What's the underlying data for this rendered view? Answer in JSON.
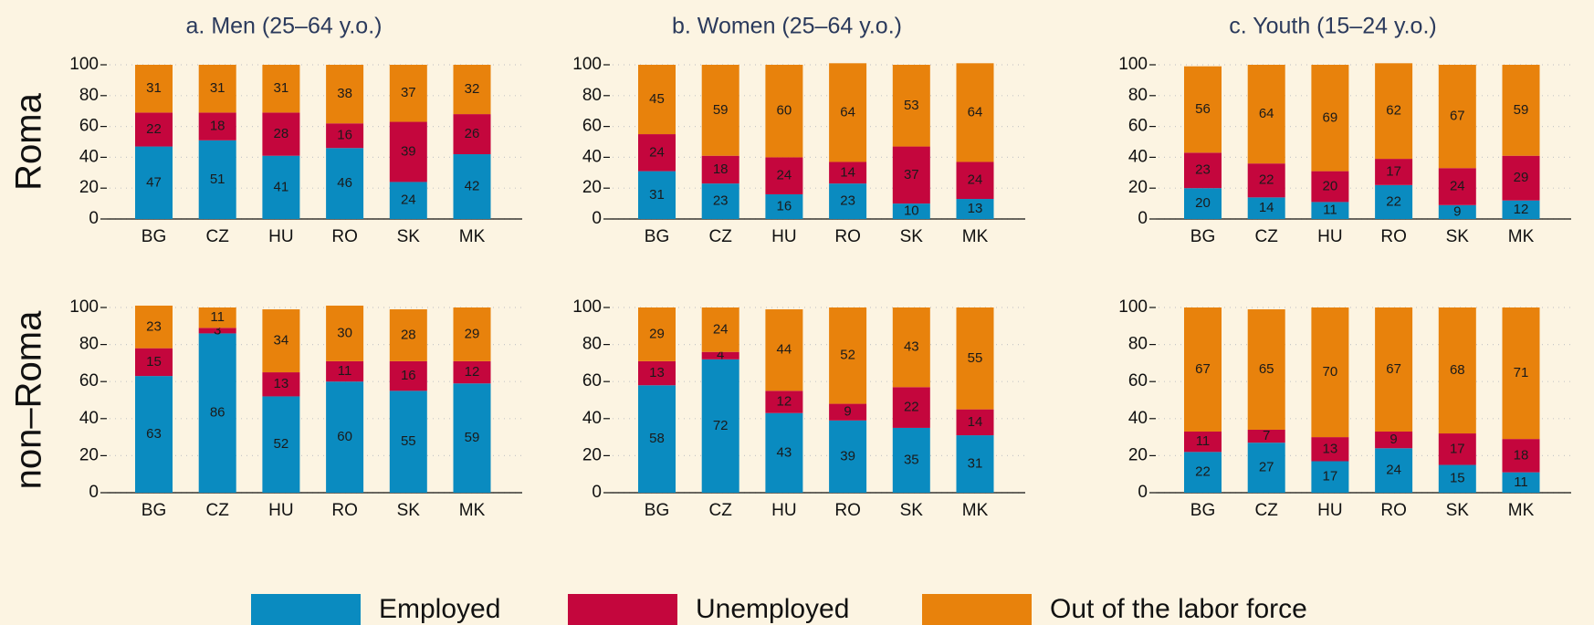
{
  "chart_data": [
    {
      "type": "bar",
      "stacked": true,
      "title": "a. Men (25–64 y.o.)",
      "row_label": "Roma",
      "categories": [
        "BG",
        "CZ",
        "HU",
        "RO",
        "SK",
        "MK"
      ],
      "series": [
        {
          "name": "Employed",
          "color": "#0a8bc0",
          "values": [
            47,
            51,
            41,
            46,
            24,
            42
          ]
        },
        {
          "name": "Unemployed",
          "color": "#c4063d",
          "values": [
            22,
            18,
            28,
            16,
            39,
            26
          ]
        },
        {
          "name": "Out of the labor force",
          "color": "#e8820c",
          "values": [
            31,
            31,
            31,
            38,
            37,
            32
          ]
        }
      ],
      "ylim": [
        0,
        100
      ],
      "yticks": [
        0,
        20,
        40,
        60,
        80,
        100
      ],
      "grid": true
    },
    {
      "type": "bar",
      "stacked": true,
      "title": "b. Women (25–64 y.o.)",
      "categories": [
        "BG",
        "CZ",
        "HU",
        "RO",
        "SK",
        "MK"
      ],
      "series": [
        {
          "color": "#0a8bc0",
          "values": [
            31,
            23,
            16,
            23,
            10,
            13
          ]
        },
        {
          "color": "#c4063d",
          "values": [
            24,
            18,
            24,
            14,
            37,
            24
          ]
        },
        {
          "color": "#e8820c",
          "values": [
            45,
            59,
            60,
            64,
            53,
            64
          ]
        }
      ],
      "ylim": [
        0,
        100
      ],
      "yticks": [
        0,
        20,
        40,
        60,
        80,
        100
      ],
      "grid": true
    },
    {
      "type": "bar",
      "stacked": true,
      "title": "c. Youth (15–24 y.o.)",
      "categories": [
        "BG",
        "CZ",
        "HU",
        "RO",
        "SK",
        "MK"
      ],
      "series": [
        {
          "color": "#0a8bc0",
          "values": [
            20,
            14,
            11,
            22,
            9,
            12
          ]
        },
        {
          "color": "#c4063d",
          "values": [
            23,
            22,
            20,
            17,
            24,
            29
          ]
        },
        {
          "color": "#e8820c",
          "values": [
            56,
            64,
            69,
            62,
            67,
            59
          ]
        }
      ],
      "ylim": [
        0,
        100
      ],
      "yticks": [
        0,
        20,
        40,
        60,
        80,
        100
      ],
      "grid": true
    },
    {
      "type": "bar",
      "stacked": true,
      "row_label": "non–Roma",
      "categories": [
        "BG",
        "CZ",
        "HU",
        "RO",
        "SK",
        "MK"
      ],
      "series": [
        {
          "color": "#0a8bc0",
          "values": [
            63,
            86,
            52,
            60,
            55,
            59
          ]
        },
        {
          "color": "#c4063d",
          "values": [
            15,
            3,
            13,
            11,
            16,
            12
          ]
        },
        {
          "color": "#e8820c",
          "values": [
            23,
            11,
            34,
            30,
            28,
            29
          ]
        }
      ],
      "ylim": [
        0,
        100
      ],
      "yticks": [
        0,
        20,
        40,
        60,
        80,
        100
      ],
      "grid": true
    },
    {
      "type": "bar",
      "stacked": true,
      "categories": [
        "BG",
        "CZ",
        "HU",
        "RO",
        "SK",
        "MK"
      ],
      "series": [
        {
          "color": "#0a8bc0",
          "values": [
            58,
            72,
            43,
            39,
            35,
            31
          ]
        },
        {
          "color": "#c4063d",
          "values": [
            13,
            4,
            12,
            9,
            22,
            14
          ]
        },
        {
          "color": "#e8820c",
          "values": [
            29,
            24,
            44,
            52,
            43,
            55
          ]
        }
      ],
      "ylim": [
        0,
        100
      ],
      "yticks": [
        0,
        20,
        40,
        60,
        80,
        100
      ],
      "grid": true
    },
    {
      "type": "bar",
      "stacked": true,
      "categories": [
        "BG",
        "CZ",
        "HU",
        "RO",
        "SK",
        "MK"
      ],
      "series": [
        {
          "color": "#0a8bc0",
          "values": [
            22,
            27,
            17,
            24,
            15,
            11
          ]
        },
        {
          "color": "#c4063d",
          "values": [
            11,
            7,
            13,
            9,
            17,
            18
          ]
        },
        {
          "color": "#e8820c",
          "values": [
            67,
            65,
            70,
            67,
            68,
            71
          ]
        }
      ],
      "ylim": [
        0,
        100
      ],
      "yticks": [
        0,
        20,
        40,
        60,
        80,
        100
      ],
      "grid": true
    }
  ]
}
